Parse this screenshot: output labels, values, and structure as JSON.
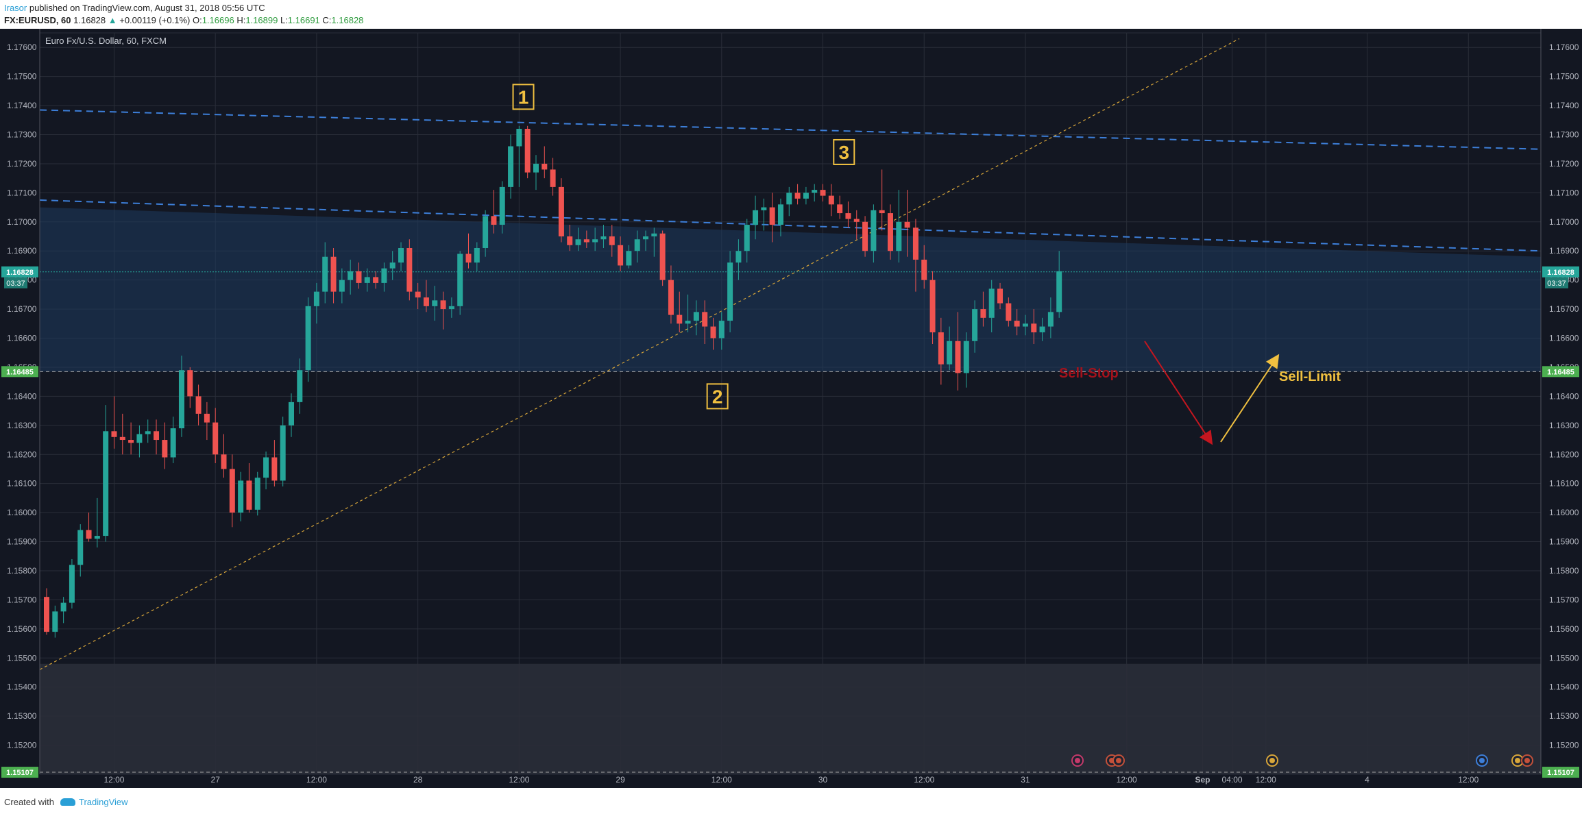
{
  "header": {
    "user": "Irasor",
    "published_text": " published on TradingView.com, August 31, 2018 05:56 UTC",
    "symbol": "FX:EURUSD, 60",
    "price": " 1.16828 ",
    "change": "+0.00119 (+0.1%)",
    "o_label": " O:",
    "o_value": "1.16696",
    "h_label": " H:",
    "h_value": "1.16899",
    "l_label": " L:",
    "l_value": "1.16691",
    "c_label": " C:",
    "c_value": "1.16828"
  },
  "footer": {
    "created": "Created with",
    "brand": "TradingView"
  },
  "chart_data": {
    "type": "candlestick",
    "title": "Euro Fx/U.S. Dollar, 60, FXCM",
    "ylim": [
      1.151,
      1.1765
    ],
    "y_ticks": [
      1.176,
      1.175,
      1.174,
      1.173,
      1.172,
      1.171,
      1.17,
      1.169,
      1.168,
      1.167,
      1.166,
      1.165,
      1.164,
      1.163,
      1.162,
      1.161,
      1.16,
      1.159,
      1.158,
      1.157,
      1.156,
      1.155,
      1.154,
      1.153,
      1.152
    ],
    "y_tick_labels": [
      "1.17600",
      "1.17500",
      "1.17400",
      "1.17300",
      "1.17200",
      "1.17100",
      "1.17000",
      "1.16900",
      "1.16800",
      "1.16700",
      "1.16600",
      "1.16500",
      "1.16400",
      "1.16300",
      "1.16200",
      "1.16100",
      "1.16000",
      "1.15900",
      "1.15800",
      "1.15700",
      "1.15600",
      "1.15500",
      "1.15400",
      "1.15300",
      "1.15200"
    ],
    "x_ticks": [
      {
        "x": 8,
        "label": "12:00"
      },
      {
        "x": 20,
        "label": "27"
      },
      {
        "x": 32,
        "label": "12:00"
      },
      {
        "x": 44,
        "label": "28"
      },
      {
        "x": 56,
        "label": "12:00"
      },
      {
        "x": 68,
        "label": "29"
      },
      {
        "x": 80,
        "label": "12:00"
      },
      {
        "x": 92,
        "label": "30"
      },
      {
        "x": 104,
        "label": "12:00"
      },
      {
        "x": 116,
        "label": "31"
      },
      {
        "x": 128,
        "label": "12:00"
      },
      {
        "x": 137,
        "label": "Sep"
      },
      {
        "x": 140.5,
        "label": "04:00"
      },
      {
        "x": 144.5,
        "label": "12:00"
      },
      {
        "x": 156.5,
        "label": "4"
      },
      {
        "x": 168.5,
        "label": "12:00"
      }
    ],
    "candles": [
      [
        1.1571,
        1.1574,
        1.1558,
        1.1559
      ],
      [
        1.1559,
        1.1568,
        1.1557,
        1.1566
      ],
      [
        1.1566,
        1.1571,
        1.1562,
        1.1569
      ],
      [
        1.1569,
        1.1584,
        1.1567,
        1.1582
      ],
      [
        1.1582,
        1.1596,
        1.1578,
        1.1594
      ],
      [
        1.1594,
        1.16,
        1.159,
        1.1591
      ],
      [
        1.1591,
        1.1605,
        1.1588,
        1.1592
      ],
      [
        1.1592,
        1.1637,
        1.159,
        1.1628
      ],
      [
        1.1628,
        1.164,
        1.1622,
        1.1626
      ],
      [
        1.1626,
        1.1634,
        1.162,
        1.1625
      ],
      [
        1.1625,
        1.1631,
        1.162,
        1.1624
      ],
      [
        1.1624,
        1.163,
        1.1619,
        1.1627
      ],
      [
        1.1627,
        1.1632,
        1.1624,
        1.1628
      ],
      [
        1.1628,
        1.1632,
        1.162,
        1.1625
      ],
      [
        1.1625,
        1.1631,
        1.1615,
        1.1619
      ],
      [
        1.1619,
        1.1633,
        1.1617,
        1.1629
      ],
      [
        1.1629,
        1.1654,
        1.1626,
        1.1649
      ],
      [
        1.1649,
        1.165,
        1.1636,
        1.164
      ],
      [
        1.164,
        1.1644,
        1.163,
        1.1634
      ],
      [
        1.1634,
        1.1638,
        1.1625,
        1.1631
      ],
      [
        1.1631,
        1.1636,
        1.1617,
        1.162
      ],
      [
        1.162,
        1.1627,
        1.1612,
        1.1615
      ],
      [
        1.1615,
        1.162,
        1.1595,
        1.16
      ],
      [
        1.16,
        1.1614,
        1.1597,
        1.1611
      ],
      [
        1.1611,
        1.1617,
        1.16,
        1.1601
      ],
      [
        1.1601,
        1.1614,
        1.1599,
        1.1612
      ],
      [
        1.1612,
        1.1621,
        1.1608,
        1.1619
      ],
      [
        1.1619,
        1.1625,
        1.1609,
        1.1611
      ],
      [
        1.1611,
        1.1633,
        1.1609,
        1.163
      ],
      [
        1.163,
        1.1641,
        1.1626,
        1.1638
      ],
      [
        1.1638,
        1.1653,
        1.1634,
        1.1649
      ],
      [
        1.1649,
        1.1674,
        1.1645,
        1.1671
      ],
      [
        1.1671,
        1.1679,
        1.1665,
        1.1676
      ],
      [
        1.1676,
        1.1693,
        1.1672,
        1.1688
      ],
      [
        1.1688,
        1.1691,
        1.1672,
        1.1676
      ],
      [
        1.1676,
        1.1684,
        1.1672,
        1.168
      ],
      [
        1.168,
        1.1687,
        1.1675,
        1.1683
      ],
      [
        1.1683,
        1.1686,
        1.1677,
        1.1679
      ],
      [
        1.1679,
        1.1684,
        1.1676,
        1.1681
      ],
      [
        1.1681,
        1.1683,
        1.1677,
        1.1679
      ],
      [
        1.1679,
        1.1686,
        1.1676,
        1.1684
      ],
      [
        1.1684,
        1.169,
        1.168,
        1.1686
      ],
      [
        1.1686,
        1.1693,
        1.1683,
        1.1691
      ],
      [
        1.1691,
        1.1694,
        1.1673,
        1.1676
      ],
      [
        1.1676,
        1.1679,
        1.167,
        1.1674
      ],
      [
        1.1674,
        1.168,
        1.1669,
        1.1671
      ],
      [
        1.1671,
        1.1678,
        1.1666,
        1.1673
      ],
      [
        1.1673,
        1.1676,
        1.1663,
        1.167
      ],
      [
        1.167,
        1.1674,
        1.1667,
        1.1671
      ],
      [
        1.1671,
        1.169,
        1.1668,
        1.1689
      ],
      [
        1.1689,
        1.1696,
        1.1684,
        1.1686
      ],
      [
        1.1686,
        1.1693,
        1.1683,
        1.1691
      ],
      [
        1.1691,
        1.1704,
        1.1688,
        1.1702
      ],
      [
        1.1702,
        1.1711,
        1.1696,
        1.1699
      ],
      [
        1.1699,
        1.1714,
        1.1696,
        1.1712
      ],
      [
        1.1712,
        1.173,
        1.1708,
        1.1726
      ],
      [
        1.1726,
        1.1733,
        1.1712,
        1.1732
      ],
      [
        1.1732,
        1.1733,
        1.1715,
        1.1717
      ],
      [
        1.1717,
        1.1723,
        1.1711,
        1.172
      ],
      [
        1.172,
        1.1726,
        1.1715,
        1.1718
      ],
      [
        1.1718,
        1.1722,
        1.1709,
        1.1712
      ],
      [
        1.1712,
        1.1715,
        1.1693,
        1.1695
      ],
      [
        1.1695,
        1.1699,
        1.169,
        1.1692
      ],
      [
        1.1692,
        1.1698,
        1.169,
        1.1694
      ],
      [
        1.1694,
        1.1697,
        1.1691,
        1.1693
      ],
      [
        1.1693,
        1.1698,
        1.169,
        1.1694
      ],
      [
        1.1694,
        1.1699,
        1.1691,
        1.1695
      ],
      [
        1.1695,
        1.1699,
        1.1688,
        1.1692
      ],
      [
        1.1692,
        1.1695,
        1.1683,
        1.1685
      ],
      [
        1.1685,
        1.1692,
        1.1684,
        1.169
      ],
      [
        1.169,
        1.1697,
        1.1686,
        1.1694
      ],
      [
        1.1694,
        1.1697,
        1.169,
        1.1695
      ],
      [
        1.1695,
        1.1698,
        1.1688,
        1.1696
      ],
      [
        1.1696,
        1.1697,
        1.1678,
        1.168
      ],
      [
        1.168,
        1.1685,
        1.1665,
        1.1668
      ],
      [
        1.1668,
        1.1676,
        1.1662,
        1.1665
      ],
      [
        1.1665,
        1.1675,
        1.1662,
        1.1666
      ],
      [
        1.1666,
        1.1673,
        1.1661,
        1.1669
      ],
      [
        1.1669,
        1.1673,
        1.1658,
        1.1664
      ],
      [
        1.1664,
        1.1667,
        1.1656,
        1.166
      ],
      [
        1.166,
        1.1669,
        1.1656,
        1.1666
      ],
      [
        1.1666,
        1.169,
        1.1662,
        1.1686
      ],
      [
        1.1686,
        1.1694,
        1.168,
        1.169
      ],
      [
        1.169,
        1.1701,
        1.1686,
        1.1699
      ],
      [
        1.1699,
        1.1709,
        1.1694,
        1.1704
      ],
      [
        1.1704,
        1.1708,
        1.1697,
        1.1705
      ],
      [
        1.1705,
        1.171,
        1.1693,
        1.1699
      ],
      [
        1.1699,
        1.1708,
        1.1695,
        1.1706
      ],
      [
        1.1706,
        1.1712,
        1.1702,
        1.171
      ],
      [
        1.171,
        1.1713,
        1.1706,
        1.1708
      ],
      [
        1.1708,
        1.1712,
        1.1706,
        1.171
      ],
      [
        1.171,
        1.1713,
        1.1707,
        1.1711
      ],
      [
        1.1711,
        1.1713,
        1.1707,
        1.1709
      ],
      [
        1.1709,
        1.1713,
        1.1702,
        1.1706
      ],
      [
        1.1706,
        1.1709,
        1.1701,
        1.1703
      ],
      [
        1.1703,
        1.1707,
        1.1698,
        1.1701
      ],
      [
        1.1701,
        1.1704,
        1.1694,
        1.17
      ],
      [
        1.17,
        1.1702,
        1.1688,
        1.169
      ],
      [
        1.169,
        1.1706,
        1.1686,
        1.1704
      ],
      [
        1.1704,
        1.1718,
        1.1697,
        1.1703
      ],
      [
        1.1703,
        1.1706,
        1.1687,
        1.169
      ],
      [
        1.169,
        1.1711,
        1.1686,
        1.17
      ],
      [
        1.17,
        1.1711,
        1.1688,
        1.1698
      ],
      [
        1.1698,
        1.1701,
        1.1676,
        1.1687
      ],
      [
        1.1687,
        1.1692,
        1.1677,
        1.168
      ],
      [
        1.168,
        1.1683,
        1.1658,
        1.1662
      ],
      [
        1.1662,
        1.1667,
        1.1644,
        1.1651
      ],
      [
        1.1651,
        1.1664,
        1.1649,
        1.1659
      ],
      [
        1.1659,
        1.1669,
        1.1642,
        1.1648
      ],
      [
        1.1648,
        1.1662,
        1.1643,
        1.1659
      ],
      [
        1.1659,
        1.1673,
        1.1655,
        1.167
      ],
      [
        1.167,
        1.1676,
        1.1664,
        1.1667
      ],
      [
        1.1667,
        1.168,
        1.1662,
        1.1677
      ],
      [
        1.1677,
        1.1679,
        1.167,
        1.1672
      ],
      [
        1.1672,
        1.1674,
        1.1664,
        1.1666
      ],
      [
        1.1666,
        1.167,
        1.1661,
        1.1664
      ],
      [
        1.1664,
        1.1668,
        1.1661,
        1.1665
      ],
      [
        1.1665,
        1.167,
        1.1658,
        1.1662
      ],
      [
        1.1662,
        1.1667,
        1.1659,
        1.1664
      ],
      [
        1.1664,
        1.1674,
        1.166,
        1.1669
      ],
      [
        1.1669,
        1.169,
        1.1667,
        1.1683
      ]
    ],
    "levels": [
      {
        "price": 1.16828,
        "label": "1.16828",
        "sublabel": "03:37",
        "color": "#26a69a"
      },
      {
        "price": 1.16485,
        "label": "1.16485",
        "color": "#4caf50"
      },
      {
        "price": 1.15107,
        "label": "1.15107",
        "color": "#4caf50"
      }
    ],
    "annotations": [
      {
        "text": "1",
        "x": 56.5,
        "y": 1.1743
      },
      {
        "text": "2",
        "x": 79.5,
        "y": 1.164
      },
      {
        "text": "3",
        "x": 94.5,
        "y": 1.1724
      }
    ],
    "labels": [
      {
        "text": "Sell-Stop",
        "color": "#a3121c"
      },
      {
        "text": "Sell-Limit",
        "color": "#f0c040"
      }
    ]
  }
}
